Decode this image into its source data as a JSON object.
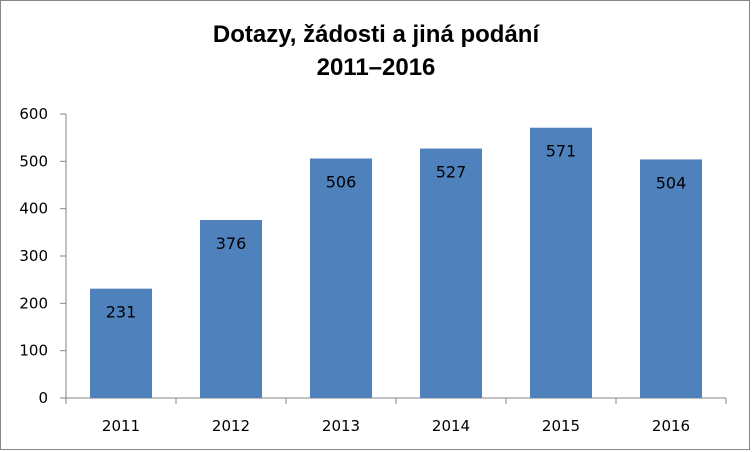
{
  "chart_data": {
    "type": "bar",
    "title_line1": "Dotazy, žádosti a jiná podání",
    "title_line2": "2011–2016",
    "categories": [
      "2011",
      "2012",
      "2013",
      "2014",
      "2015",
      "2016"
    ],
    "values": [
      231,
      376,
      506,
      527,
      571,
      504
    ],
    "data_labels": [
      "231",
      "376",
      "506",
      "527",
      "571",
      "504"
    ],
    "ylim": [
      0,
      600
    ],
    "yticks": [
      0,
      100,
      200,
      300,
      400,
      500,
      600
    ],
    "grid": false,
    "legend": "none",
    "bar_color": "#4F81BD",
    "axis_color": "#868686"
  }
}
